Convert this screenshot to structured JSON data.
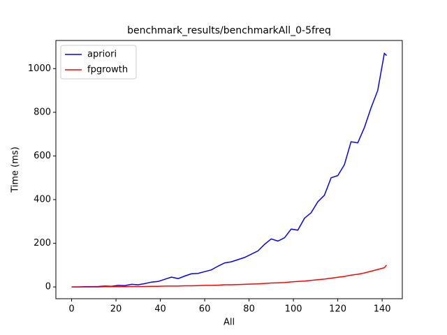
{
  "chart_data": {
    "type": "line",
    "title": "benchmark_results/benchmarkAll_0-5freq",
    "x_label": "All",
    "y_label": "Time (ms)",
    "x": [
      0,
      3,
      6,
      9,
      12,
      15,
      18,
      21,
      24,
      27,
      30,
      33,
      36,
      39,
      42,
      45,
      48,
      51,
      54,
      57,
      60,
      63,
      66,
      69,
      72,
      75,
      78,
      81,
      84,
      87,
      90,
      93,
      96,
      99,
      102,
      105,
      108,
      111,
      114,
      117,
      120,
      123,
      126,
      129,
      132,
      135,
      138,
      141,
      142
    ],
    "series": [
      {
        "name": "apriori",
        "color": "#0000ff",
        "values": [
          0,
          0,
          1,
          1,
          2,
          4,
          3,
          7,
          6,
          12,
          10,
          15,
          22,
          25,
          35,
          45,
          38,
          50,
          60,
          62,
          70,
          78,
          95,
          110,
          115,
          125,
          135,
          150,
          165,
          195,
          220,
          210,
          225,
          265,
          260,
          315,
          340,
          390,
          420,
          500,
          510,
          560,
          665,
          660,
          730,
          820,
          900,
          1070,
          1060
        ]
      },
      {
        "name": "fpgrowth",
        "color": "#ff0000",
        "values": [
          0,
          0,
          0,
          0,
          0,
          1,
          1,
          1,
          1,
          2,
          2,
          2,
          3,
          3,
          4,
          4,
          4,
          5,
          5,
          6,
          7,
          7,
          8,
          10,
          10,
          11,
          12,
          13,
          14,
          16,
          18,
          19,
          20,
          23,
          25,
          27,
          30,
          33,
          36,
          40,
          44,
          48,
          54,
          58,
          64,
          72,
          80,
          88,
          100
        ]
      }
    ],
    "xlim": [
      -7.1,
      149.1
    ],
    "xticks": [
      0,
      20,
      40,
      60,
      80,
      100,
      120,
      140
    ],
    "ylim": [
      -54,
      1129
    ],
    "yticks": [
      0,
      200,
      400,
      600,
      800,
      1000
    ],
    "legend": "upper left"
  }
}
